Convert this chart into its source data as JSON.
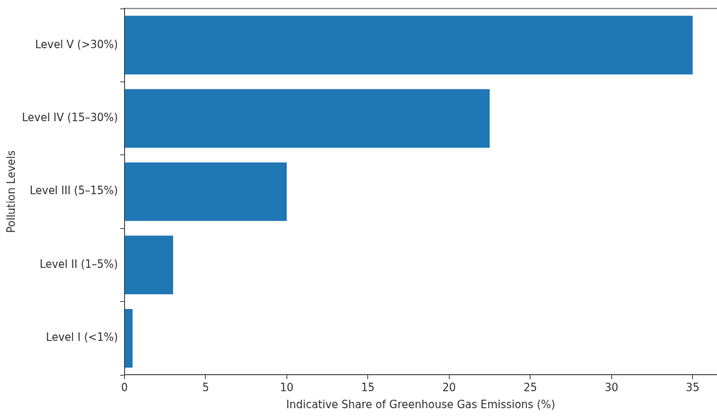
{
  "chart_data": {
    "type": "bar",
    "orientation": "horizontal",
    "categories": [
      "Level V (>30%)",
      "Level IV (15–30%)",
      "Level III (5–15%)",
      "Level II (1–5%)",
      "Level I (<1%)"
    ],
    "values": [
      35,
      22.5,
      10,
      3,
      0.5
    ],
    "color": "#1f77b4",
    "xlabel": "Indicative Share of Greenhouse Gas Emissions (%)",
    "ylabel": "Pollution Levels",
    "xlim": [
      0,
      36.5
    ],
    "xticks": [
      0,
      5,
      10,
      15,
      20,
      25,
      30,
      35
    ],
    "grid": false,
    "legend": false
  }
}
